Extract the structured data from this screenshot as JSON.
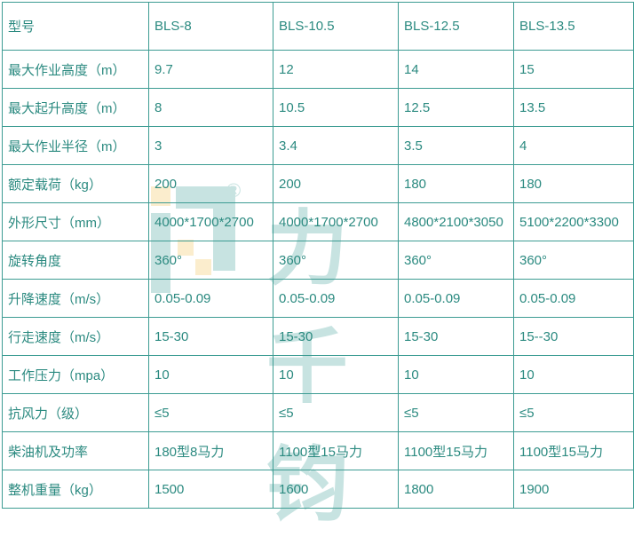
{
  "watermark": {
    "text": "力千钧",
    "registered": "®"
  },
  "colors": {
    "text": "#2b8a80",
    "border": "#3d9c93"
  },
  "table": {
    "rows": [
      [
        "型号",
        "BLS-8",
        "BLS-10.5",
        "BLS-12.5",
        "BLS-13.5"
      ],
      [
        "最大作业高度（m）",
        "9.7",
        "12",
        "14",
        "15"
      ],
      [
        "最大起升高度（m）",
        "8",
        "10.5",
        "12.5",
        "13.5"
      ],
      [
        "最大作业半径（m）",
        "3",
        "3.4",
        "3.5",
        "4"
      ],
      [
        "额定载荷（kg）",
        "200",
        "200",
        "180",
        "180"
      ],
      [
        "外形尺寸（mm）",
        "4000*1700*2700",
        "4000*1700*2700",
        "4800*2100*3050",
        "5100*2200*3300"
      ],
      [
        "旋转角度",
        "360°",
        "360°",
        "360°",
        "360°"
      ],
      [
        "升降速度（m/s）",
        "0.05-0.09",
        "0.05-0.09",
        "0.05-0.09",
        "0.05-0.09"
      ],
      [
        "行走速度（m/s）",
        "15-30",
        "15-30",
        "15-30",
        "15--30"
      ],
      [
        "工作压力（mpa）",
        "10",
        "10",
        "10",
        "10"
      ],
      [
        "抗风力（级）",
        "≤5",
        "≤5",
        "≤5",
        "≤5"
      ],
      [
        "柴油机及功率",
        "180型8马力",
        "1100型15马力",
        "1100型15马力",
        "1100型15马力"
      ],
      [
        "整机重量（kg）",
        "1500",
        "1600",
        "1800",
        "1900"
      ]
    ]
  }
}
